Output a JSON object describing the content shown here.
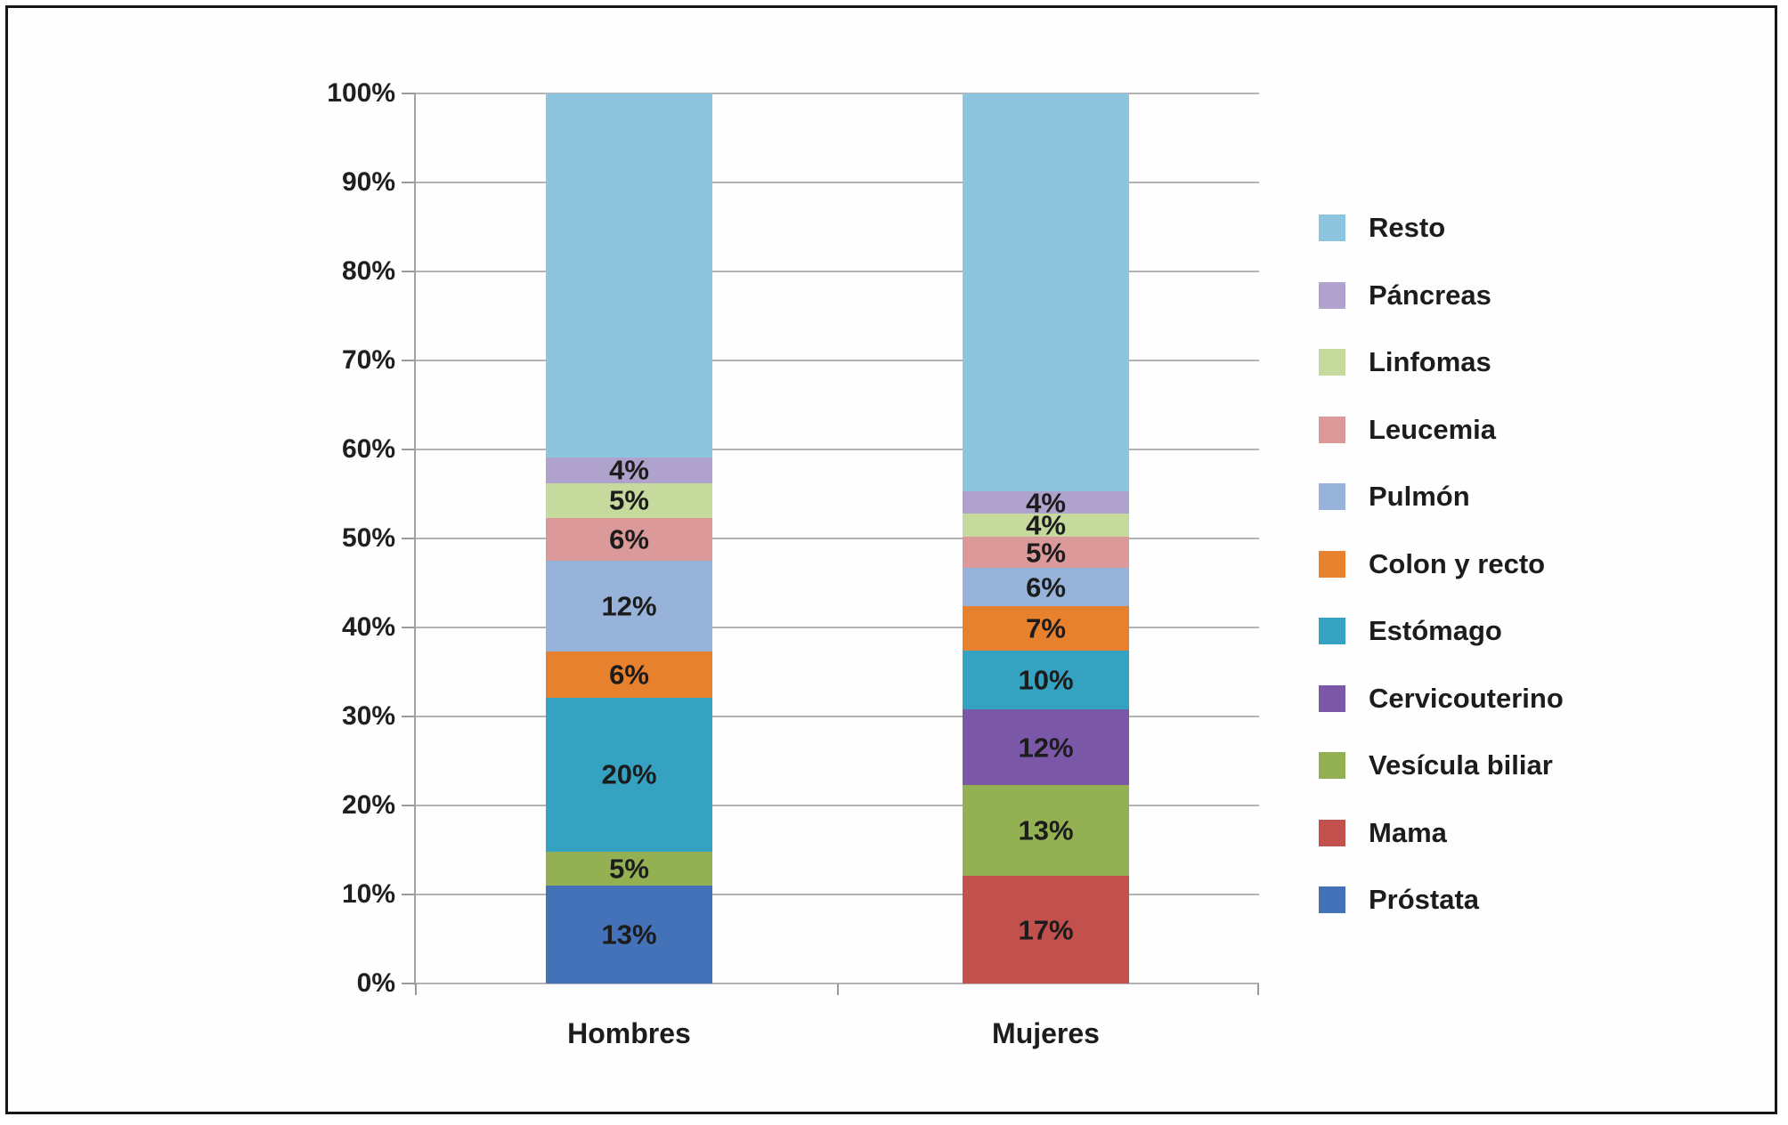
{
  "figure": {
    "description": "Stacked 100% bar chart of cancer type distribution by sex",
    "background": "#ffffff",
    "border_color": "#161616"
  },
  "chart_data": {
    "type": "bar",
    "subtype": "stacked-percent-column",
    "title": "",
    "xlabel": "",
    "ylabel": "",
    "ylim": [
      0,
      100
    ],
    "grid": true,
    "legend_position": "right",
    "categories": [
      "Hombres",
      "Mujeres"
    ],
    "yticks": [
      "0%",
      "10%",
      "20%",
      "30%",
      "40%",
      "50%",
      "60%",
      "70%",
      "80%",
      "90%",
      "100%"
    ],
    "text_color": "#1c1c1c",
    "gridline_color": "#b3b3b3",
    "series": [
      {
        "name": "Próstata",
        "color": "#4372b8",
        "values": {
          "Hombres": 13,
          "Mujeres": null
        },
        "labels": [
          "13%",
          ""
        ],
        "visual_heights": [
          11.0,
          0
        ]
      },
      {
        "name": "Mama",
        "color": "#c2504d",
        "values": {
          "Hombres": null,
          "Mujeres": 17
        },
        "labels": [
          "",
          "17%"
        ],
        "visual_heights": [
          0,
          12.1
        ]
      },
      {
        "name": "Vesícula biliar",
        "color": "#93b052",
        "values": {
          "Hombres": 5,
          "Mujeres": 13
        },
        "labels": [
          "5%",
          "13%"
        ],
        "visual_heights": [
          3.85,
          10.2
        ]
      },
      {
        "name": "Cervicouterino",
        "color": "#7b57a8",
        "values": {
          "Hombres": null,
          "Mujeres": 12
        },
        "labels": [
          "",
          "12%"
        ],
        "visual_heights": [
          0,
          8.5
        ]
      },
      {
        "name": "Estómago",
        "color": "#35a2c2",
        "values": {
          "Hombres": 20,
          "Mujeres": 10
        },
        "labels": [
          "20%",
          "10%"
        ],
        "visual_heights": [
          17.3,
          6.6
        ]
      },
      {
        "name": "Colon y recto",
        "color": "#e8812d",
        "values": {
          "Hombres": 6,
          "Mujeres": 7
        },
        "labels": [
          "6%",
          "7%"
        ],
        "visual_heights": [
          5.2,
          5.0
        ]
      },
      {
        "name": "Pulmón",
        "color": "#97b3da",
        "values": {
          "Hombres": 12,
          "Mujeres": 6
        },
        "labels": [
          "12%",
          "6%"
        ],
        "visual_heights": [
          10.2,
          4.3
        ]
      },
      {
        "name": "Leucemia",
        "color": "#db9a99",
        "values": {
          "Hombres": 6,
          "Mujeres": 5
        },
        "labels": [
          "6%",
          "5%"
        ],
        "visual_heights": [
          4.8,
          3.5
        ]
      },
      {
        "name": "Linfomas",
        "color": "#c5da9c",
        "values": {
          "Hombres": 5,
          "Mujeres": 4
        },
        "labels": [
          "5%",
          "4%"
        ],
        "visual_heights": [
          3.9,
          2.6
        ]
      },
      {
        "name": "Páncreas",
        "color": "#afa2cc",
        "values": {
          "Hombres": 4,
          "Mujeres": 4
        },
        "labels": [
          "4%",
          "4%"
        ],
        "visual_heights": [
          2.9,
          2.5
        ]
      },
      {
        "name": "Resto",
        "color": "#8ec5de",
        "values": {
          "Hombres": null,
          "Mujeres": null
        },
        "labels": [
          "",
          ""
        ],
        "visual_heights": [
          40.85,
          44.7
        ]
      }
    ],
    "legend_order": [
      "Resto",
      "Páncreas",
      "Linfomas",
      "Leucemia",
      "Pulmón",
      "Colon y recto",
      "Estómago",
      "Cervicouterino",
      "Vesícula biliar",
      "Mama",
      "Próstata"
    ]
  }
}
